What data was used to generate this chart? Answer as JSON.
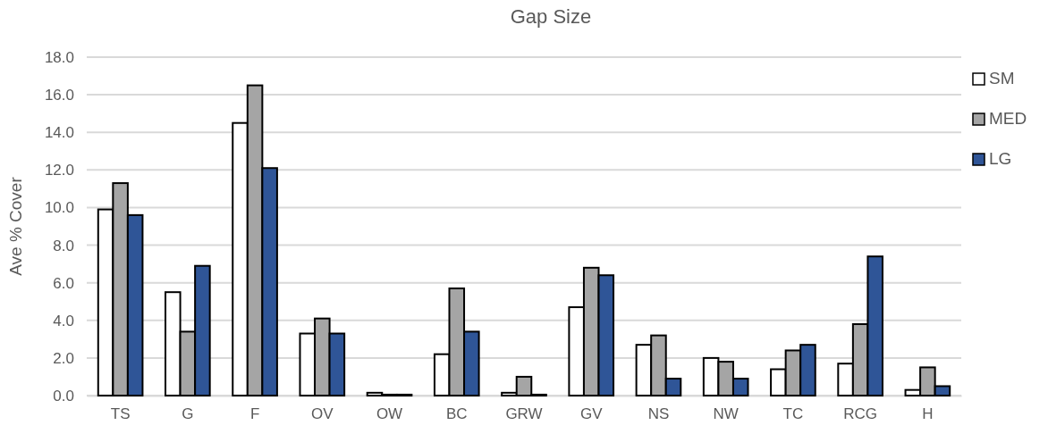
{
  "chart_data": {
    "type": "bar",
    "title": "Gap Size",
    "ylabel": "Ave % Cover",
    "categories": [
      "TS",
      "G",
      "F",
      "OV",
      "OW",
      "BC",
      "GRW",
      "GV",
      "NS",
      "NW",
      "TC",
      "RCG",
      "H"
    ],
    "series": [
      {
        "name": "SM",
        "color": "#ffffff",
        "values": [
          9.9,
          5.5,
          14.5,
          3.3,
          0.15,
          2.2,
          0.15,
          4.7,
          2.7,
          2.0,
          1.4,
          1.7,
          0.3
        ]
      },
      {
        "name": "MED",
        "color": "#a5a5a5",
        "values": [
          11.3,
          3.4,
          16.5,
          4.1,
          0.05,
          5.7,
          1.0,
          6.8,
          3.2,
          1.8,
          2.4,
          3.8,
          1.5
        ]
      },
      {
        "name": "LG",
        "color": "#2f5597",
        "values": [
          9.6,
          6.9,
          12.1,
          3.3,
          0.05,
          3.4,
          0.05,
          6.4,
          0.9,
          0.9,
          2.7,
          7.4,
          0.5
        ]
      }
    ],
    "ylim": [
      0,
      18
    ],
    "yticks": [
      {
        "value": 0,
        "label": "0.0"
      },
      {
        "value": 2,
        "label": "2.0"
      },
      {
        "value": 4,
        "label": "4.0"
      },
      {
        "value": 6,
        "label": "6.0"
      },
      {
        "value": 8,
        "label": "8.0"
      },
      {
        "value": 10,
        "label": "10.0"
      },
      {
        "value": 12,
        "label": "12.0"
      },
      {
        "value": 14,
        "label": "14.0"
      },
      {
        "value": 16,
        "label": "16.0"
      },
      {
        "value": 18,
        "label": "18.0"
      }
    ],
    "grid": "y",
    "legend": "right"
  }
}
